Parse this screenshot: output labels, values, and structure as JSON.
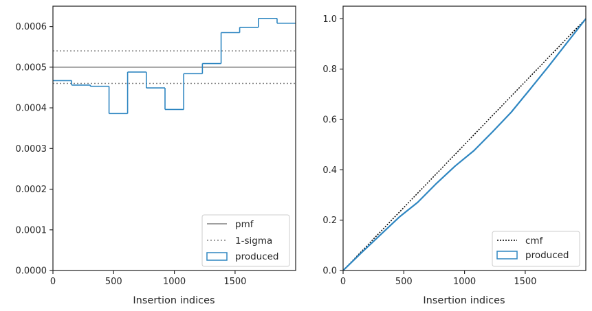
{
  "chart_data": [
    {
      "type": "line",
      "title": "",
      "xlabel": "Insertion indices",
      "ylabel": "",
      "xlim": [
        0,
        1999
      ],
      "ylim": [
        0,
        0.00065
      ],
      "xticks": [
        0,
        500,
        1000,
        1500
      ],
      "xtick_labels": [
        "0",
        "500",
        "1000",
        "1500"
      ],
      "yticks": [
        0,
        0.0001,
        0.0002,
        0.0003,
        0.0004,
        0.0005,
        0.0006
      ],
      "ytick_labels": [
        "0.0000",
        "0.0001",
        "0.0002",
        "0.0003",
        "0.0004",
        "0.0005",
        "0.0006"
      ],
      "grid": false,
      "legend_position": "bottom-right",
      "pmf": {
        "name": "pmf",
        "value": 0.0005,
        "color": "#808080"
      },
      "sigma": {
        "name": "1-sigma",
        "values": [
          0.00046,
          0.00054
        ],
        "color": "#808080"
      },
      "histogram": {
        "name": "produced",
        "color": "#2e86c1",
        "bin_edges": [
          0,
          154,
          308,
          462,
          615,
          769,
          923,
          1077,
          1231,
          1385,
          1538,
          1692,
          1846,
          1999
        ],
        "values": [
          0.000467,
          0.000456,
          0.000453,
          0.000386,
          0.000488,
          0.000449,
          0.000396,
          0.000484,
          0.000509,
          0.000585,
          0.000598,
          0.00062,
          0.000608
        ]
      }
    },
    {
      "type": "line",
      "title": "",
      "xlabel": "Insertion indices",
      "ylabel": "",
      "xlim": [
        0,
        1999
      ],
      "ylim": [
        0,
        1.05
      ],
      "xticks": [
        0,
        500,
        1000,
        1500
      ],
      "xtick_labels": [
        "0",
        "500",
        "1000",
        "1500"
      ],
      "yticks": [
        0,
        0.2,
        0.4,
        0.6,
        0.8,
        1.0
      ],
      "ytick_labels": [
        "0.0",
        "0.2",
        "0.4",
        "0.6",
        "0.8",
        "1.0"
      ],
      "grid": false,
      "legend_position": "bottom-right",
      "cmf": {
        "name": "cmf",
        "x": [
          0,
          1999
        ],
        "y": [
          0,
          1.0
        ],
        "color": "#000000"
      },
      "produced": {
        "name": "produced",
        "color": "#2e86c1",
        "x": [
          0,
          154,
          308,
          462,
          615,
          769,
          923,
          1077,
          1231,
          1385,
          1538,
          1692,
          1846,
          1999
        ],
        "y": [
          0,
          0.072,
          0.142,
          0.212,
          0.271,
          0.346,
          0.415,
          0.476,
          0.551,
          0.629,
          0.719,
          0.811,
          0.906,
          1.0
        ]
      }
    }
  ]
}
